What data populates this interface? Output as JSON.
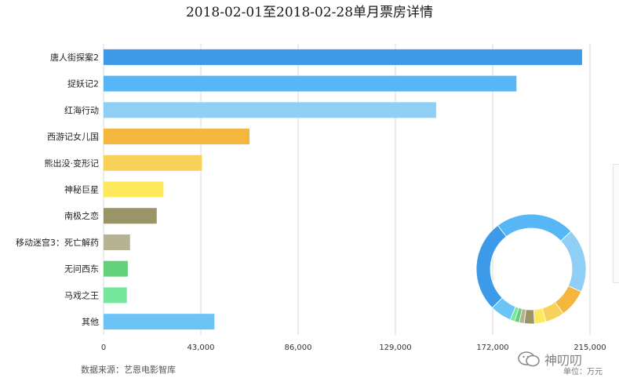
{
  "chart_data": {
    "type": "bar",
    "orientation": "horizontal",
    "title": "2018-02-01至2018-02-28单月票房详情",
    "categories": [
      "唐人街探案2",
      "捉妖记2",
      "红海行动",
      "西游记女儿国",
      "熊出没·变形记",
      "神秘巨星",
      "南极之恋",
      "移动迷宫3：死亡解药",
      "无问西东",
      "马戏之王",
      "其他"
    ],
    "values": [
      211500,
      182500,
      147000,
      64500,
      43500,
      26500,
      23500,
      11700,
      10700,
      10300,
      49000
    ],
    "colors": [
      "#3d9ae8",
      "#56b6f6",
      "#8fcff6",
      "#f5b63e",
      "#f8d15a",
      "#fde95b",
      "#9a9466",
      "#b5b392",
      "#63d07a",
      "#76e69c",
      "#6cc3f6"
    ],
    "xlim": [
      0,
      215000
    ],
    "xticks": [
      0,
      43000,
      86000,
      129000,
      172000,
      215000
    ],
    "xtick_labels": [
      "0",
      "43,000",
      "86,000",
      "129,000",
      "172,000",
      "215,000"
    ],
    "grid": true,
    "donut": {
      "values": [
        211500,
        182500,
        147000,
        64500,
        43500,
        26500,
        23500,
        11700,
        10700,
        10300,
        49000
      ],
      "colors": [
        "#3d9ae8",
        "#56b6f6",
        "#8fcff6",
        "#f5b63e",
        "#f8d15a",
        "#fde95b",
        "#9a9466",
        "#b5b392",
        "#63d07a",
        "#76e69c",
        "#6cc3f6"
      ],
      "placement": "bottom-right"
    }
  },
  "footer": {
    "source": "数据来源：艺恩电影智库",
    "unit": "单位：万元"
  },
  "watermark": {
    "text": "神叨叨"
  }
}
